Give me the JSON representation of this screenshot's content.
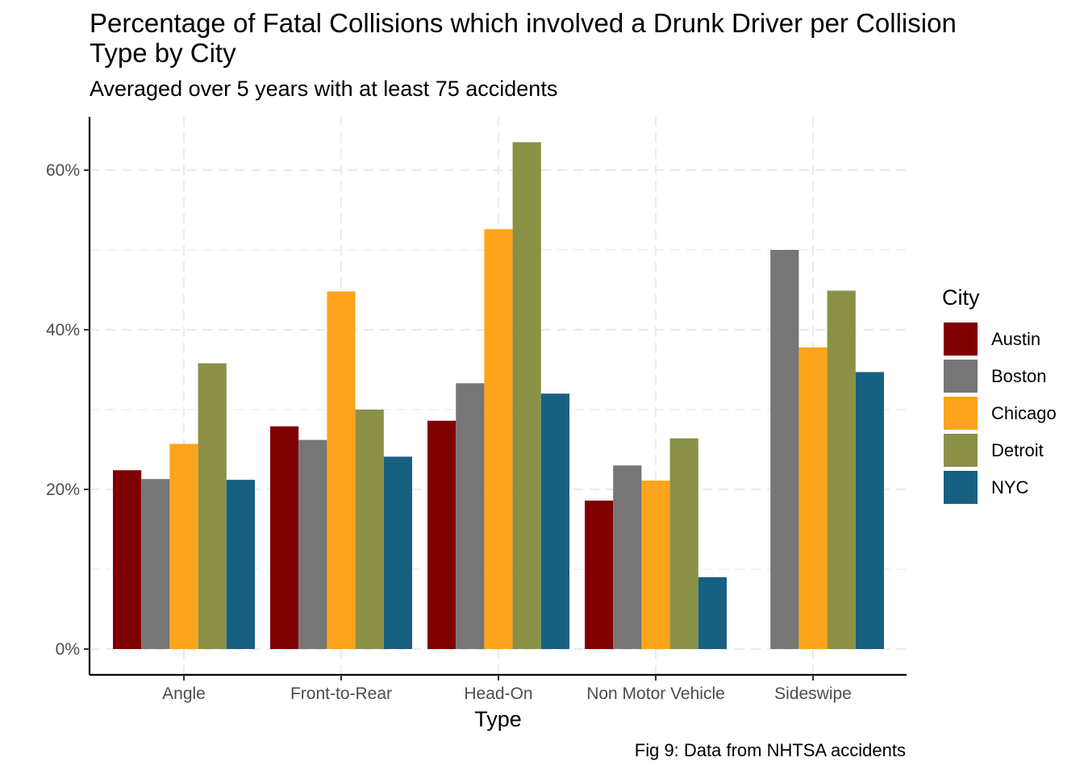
{
  "chart_data": {
    "type": "bar",
    "title": "Percentage of Fatal Collisions which involved a Drunk Driver per Collision Type by City",
    "subtitle": "Averaged over 5 years with at least 75 accidents",
    "caption": "Fig 9: Data from NHTSA accidents",
    "xlabel": "Type",
    "ylabel": "",
    "categories": [
      "Angle",
      "Front-to-Rear",
      "Head-On",
      "Non Motor Vehicle",
      "Sideswipe"
    ],
    "series": [
      {
        "name": "Austin",
        "color": "#7f0000",
        "values": [
          22.4,
          27.9,
          28.6,
          18.6,
          null
        ]
      },
      {
        "name": "Boston",
        "color": "#767676",
        "values": [
          21.3,
          26.2,
          33.3,
          23.0,
          50.0
        ]
      },
      {
        "name": "Chicago",
        "color": "#fda41d",
        "values": [
          25.7,
          44.8,
          52.6,
          21.1,
          37.8
        ]
      },
      {
        "name": "Detroit",
        "color": "#8a9147",
        "values": [
          35.8,
          30.0,
          63.5,
          26.4,
          44.9
        ]
      },
      {
        "name": "NYC",
        "color": "#176082",
        "values": [
          21.2,
          24.1,
          32.0,
          9.0,
          34.7
        ]
      }
    ],
    "ylim": [
      0,
      66.5
    ],
    "yticks": [
      0,
      20,
      40,
      60
    ],
    "ytick_labels": [
      "0%",
      "20%",
      "40%",
      "60%"
    ],
    "grid": true,
    "legend": {
      "title": "City",
      "position": "right"
    }
  }
}
